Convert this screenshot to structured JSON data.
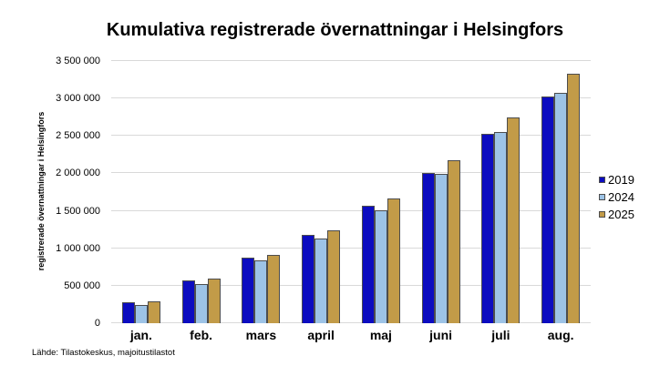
{
  "source": "Lähde: Tilastokeskus, majoitustilastot",
  "colors": {
    "background": "#ffffff",
    "gridline": "#d9d9d9",
    "bar_border": "#4d4d4d",
    "series_2019": "#0c0cc0",
    "series_2024": "#9dc3e6",
    "series_2025": "#c29b48",
    "text": "#000000"
  },
  "chart_data": {
    "type": "bar",
    "title": "Kumulativa registrerade övernattningar i Helsingfors",
    "xlabel": "",
    "ylabel": "registrerade övernattningar i Helsingfors",
    "categories": [
      "jan.",
      "feb.",
      "mars",
      "april",
      "maj",
      "juni",
      "juli",
      "aug."
    ],
    "series": [
      {
        "name": "2019",
        "color": "#0c0cc0",
        "values": [
          285000,
          570000,
          880000,
          1180000,
          1570000,
          2005000,
          2530000,
          3030000
        ]
      },
      {
        "name": "2024",
        "color": "#9dc3e6",
        "values": [
          245000,
          525000,
          835000,
          1135000,
          1505000,
          1990000,
          2550000,
          3070000
        ]
      },
      {
        "name": "2025",
        "color": "#c29b48",
        "values": [
          290000,
          595000,
          915000,
          1235000,
          1665000,
          2170000,
          2750000,
          3330000
        ]
      }
    ],
    "ylim": [
      0,
      3500000
    ],
    "ytick_step": 500000,
    "ytick_labels": [
      "0",
      "500 000",
      "1 000 000",
      "1 500 000",
      "2 000 000",
      "2 500 000",
      "3 000 000",
      "3 500 000"
    ],
    "grid": true,
    "legend_position": "right"
  }
}
